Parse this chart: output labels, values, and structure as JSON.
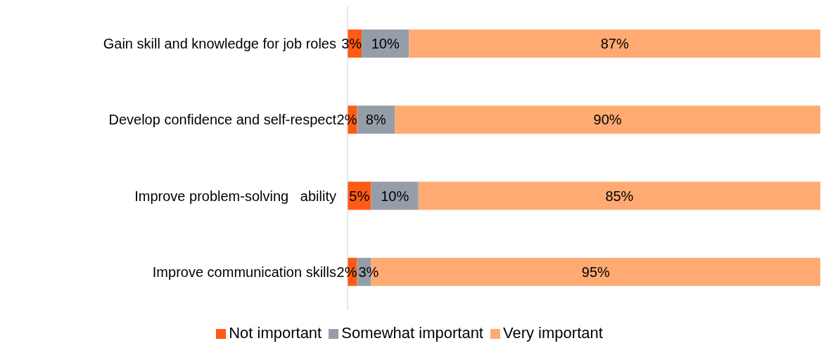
{
  "chart_data": {
    "type": "bar",
    "orientation": "horizontal",
    "stacked": true,
    "categories": [
      "Gain skill and knowledge for job roles",
      "Develop confidence and self-respect",
      "Improve problem-solving   ability",
      "Improve communication skills"
    ],
    "series": [
      {
        "name": "Not important",
        "color": "#ff5b14",
        "values": [
          3,
          2,
          5,
          2
        ],
        "value_labels": [
          "3%",
          "2%",
          "5%",
          "2%"
        ]
      },
      {
        "name": "Somewhat important",
        "color": "#959ea8",
        "values": [
          10,
          8,
          10,
          3
        ],
        "value_labels": [
          "10%",
          "8%",
          "10%",
          "3%"
        ]
      },
      {
        "name": "Very important",
        "color": "#ffaa72",
        "values": [
          87,
          90,
          85,
          95
        ],
        "value_labels": [
          "87%",
          "90%",
          "85%",
          "95%"
        ]
      }
    ],
    "tick_labels": "y",
    "grid": false,
    "legend": "bottom"
  }
}
